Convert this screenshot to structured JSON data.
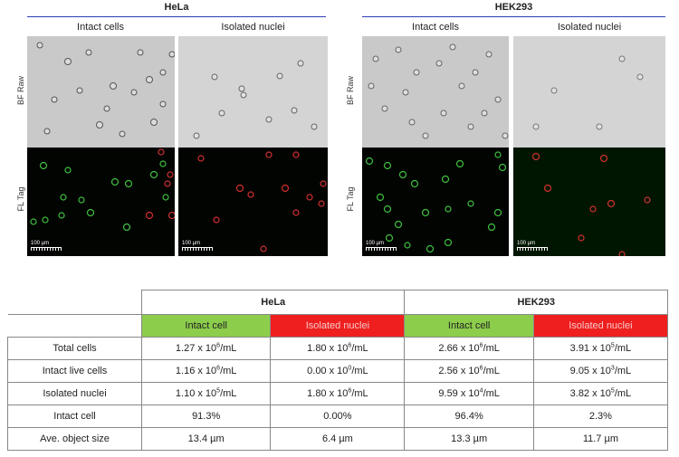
{
  "figure": {
    "groups": [
      {
        "title": "HeLa",
        "columns": [
          "Intact cells",
          "Isolated nuclei"
        ]
      },
      {
        "title": "HEK293",
        "columns": [
          "Intact cells",
          "Isolated nuclei"
        ]
      }
    ],
    "row_labels": [
      "BF Raw",
      "FL Tag"
    ],
    "scale_bar_label": "100 µm"
  },
  "table": {
    "groups": [
      "HeLa",
      "HEK293"
    ],
    "subheaders": [
      "Intact cell",
      "Isolated nuclei",
      "Intact cell",
      "Isolated nuclei"
    ],
    "subheader_colors": [
      "#8ccd4c",
      "#ef1f1f",
      "#8ccd4c",
      "#ef1f1f"
    ],
    "rows": [
      {
        "label": "Total cells",
        "cells": [
          {
            "m": "1.27 x 10",
            "e": "6",
            "u": "/mL"
          },
          {
            "m": "1.80 x 10",
            "e": "6",
            "u": "/mL"
          },
          {
            "m": "2.66 x 10",
            "e": "6",
            "u": "/mL"
          },
          {
            "m": "3.91 x 10",
            "e": "5",
            "u": "/mL"
          }
        ]
      },
      {
        "label": "Intact live cells",
        "cells": [
          {
            "m": "1.16 x 10",
            "e": "6",
            "u": "/mL"
          },
          {
            "m": "0.00 x 10",
            "e": "0",
            "u": "/mL"
          },
          {
            "m": "2.56 x 10",
            "e": "6",
            "u": "/mL"
          },
          {
            "m": "9.05 x 10",
            "e": "3",
            "u": "/mL"
          }
        ]
      },
      {
        "label": "Isolated nuclei",
        "cells": [
          {
            "m": "1.10 x 10",
            "e": "5",
            "u": "/mL"
          },
          {
            "m": "1.80 x 10",
            "e": "6",
            "u": "/mL"
          },
          {
            "m": "9.59 x 10",
            "e": "4",
            "u": "/mL"
          },
          {
            "m": "3.82 x 10",
            "e": "5",
            "u": "/mL"
          }
        ]
      },
      {
        "label": "Intact cell",
        "cells": [
          {
            "m": "91.3%"
          },
          {
            "m": "0.00%"
          },
          {
            "m": "96.4%"
          },
          {
            "m": "2.3%"
          }
        ]
      },
      {
        "label": "Ave. object size",
        "cells": [
          {
            "m": "13.4 µm"
          },
          {
            "m": "6.4 µm"
          },
          {
            "m": "13.3 µm"
          },
          {
            "m": "11.7 µm"
          }
        ]
      }
    ]
  }
}
